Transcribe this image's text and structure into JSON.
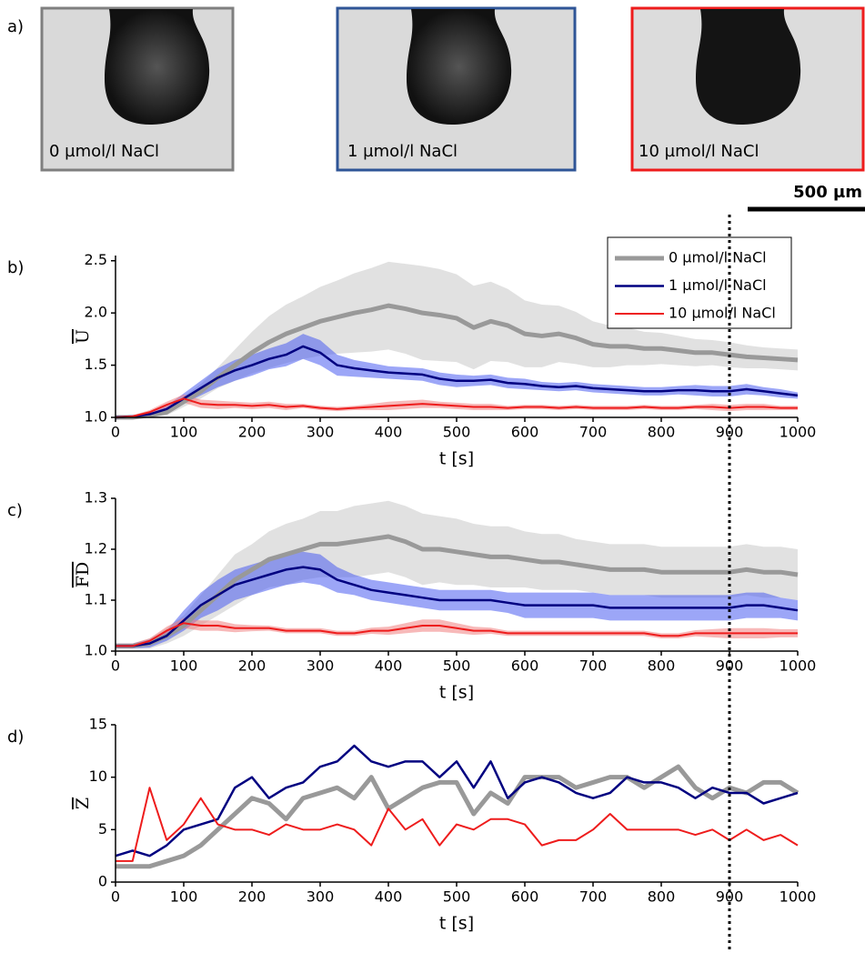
{
  "images": {
    "panel": "a)",
    "captions": [
      "0 µmol/l NaCl",
      "1 µmol/l NaCl",
      "10 µmol/l NaCl"
    ],
    "border_colors": [
      "#7f7f7f",
      "#2f5597",
      "#ee1c1c"
    ],
    "scale_bar": "500 µm"
  },
  "reference_line": {
    "x": 900
  },
  "chart_data": [
    {
      "type": "line",
      "panel": "b)",
      "ylabel": "U",
      "xlabel": "t [s]",
      "x": [
        0,
        25,
        50,
        75,
        100,
        125,
        150,
        175,
        200,
        225,
        250,
        275,
        300,
        325,
        350,
        375,
        400,
        425,
        450,
        475,
        500,
        525,
        550,
        575,
        600,
        625,
        650,
        675,
        700,
        725,
        750,
        775,
        800,
        825,
        850,
        875,
        900,
        925,
        950,
        975,
        1000
      ],
      "xlim": [
        0,
        1000
      ],
      "xticks": [
        0,
        100,
        200,
        300,
        400,
        500,
        600,
        700,
        800,
        900,
        1000
      ],
      "ylim": [
        1,
        2.55
      ],
      "yticks": [
        {
          "value": 1,
          "label": "1.0"
        },
        1.5,
        {
          "value": 2,
          "label": "2.0"
        },
        2.5
      ],
      "legend": "upper right",
      "series": [
        {
          "name": "0 µmol/l NaCl",
          "color": "#999999",
          "band_color": "#c8c8c8",
          "values": [
            1.0,
            1.0,
            1.02,
            1.05,
            1.15,
            1.25,
            1.38,
            1.5,
            1.62,
            1.72,
            1.8,
            1.86,
            1.92,
            1.96,
            2.0,
            2.03,
            2.07,
            2.04,
            2.0,
            1.98,
            1.95,
            1.86,
            1.92,
            1.88,
            1.8,
            1.78,
            1.8,
            1.76,
            1.7,
            1.68,
            1.68,
            1.66,
            1.66,
            1.64,
            1.62,
            1.62,
            1.6,
            1.58,
            1.57,
            1.56,
            1.55
          ],
          "error": [
            0.01,
            0.01,
            0.02,
            0.03,
            0.05,
            0.07,
            0.1,
            0.15,
            0.2,
            0.25,
            0.28,
            0.3,
            0.33,
            0.35,
            0.38,
            0.4,
            0.42,
            0.43,
            0.45,
            0.44,
            0.42,
            0.4,
            0.38,
            0.35,
            0.32,
            0.3,
            0.27,
            0.25,
            0.22,
            0.2,
            0.18,
            0.16,
            0.15,
            0.14,
            0.13,
            0.12,
            0.12,
            0.11,
            0.1,
            0.1,
            0.1
          ]
        },
        {
          "name": "1 µmol/l NaCl",
          "color": "#000080",
          "band_color": "#4a5cf0",
          "values": [
            1.0,
            1.01,
            1.03,
            1.08,
            1.18,
            1.28,
            1.38,
            1.45,
            1.5,
            1.56,
            1.6,
            1.68,
            1.62,
            1.5,
            1.47,
            1.45,
            1.43,
            1.42,
            1.41,
            1.37,
            1.35,
            1.35,
            1.36,
            1.33,
            1.32,
            1.3,
            1.29,
            1.3,
            1.28,
            1.27,
            1.26,
            1.25,
            1.25,
            1.26,
            1.26,
            1.25,
            1.25,
            1.27,
            1.25,
            1.23,
            1.21
          ],
          "error": [
            0.01,
            0.01,
            0.02,
            0.03,
            0.05,
            0.07,
            0.09,
            0.1,
            0.1,
            0.1,
            0.11,
            0.12,
            0.12,
            0.1,
            0.08,
            0.07,
            0.06,
            0.06,
            0.06,
            0.06,
            0.06,
            0.05,
            0.05,
            0.05,
            0.05,
            0.04,
            0.04,
            0.04,
            0.04,
            0.04,
            0.04,
            0.04,
            0.04,
            0.04,
            0.05,
            0.05,
            0.05,
            0.05,
            0.04,
            0.04,
            0.03
          ]
        },
        {
          "name": "10 µmol/l NaCl",
          "color": "#ee1c1c",
          "band_color": "#f08080",
          "values": [
            1.0,
            1.01,
            1.05,
            1.12,
            1.18,
            1.13,
            1.12,
            1.12,
            1.11,
            1.12,
            1.1,
            1.11,
            1.09,
            1.08,
            1.09,
            1.1,
            1.11,
            1.12,
            1.13,
            1.12,
            1.11,
            1.1,
            1.1,
            1.09,
            1.1,
            1.1,
            1.09,
            1.1,
            1.09,
            1.09,
            1.09,
            1.1,
            1.09,
            1.09,
            1.1,
            1.1,
            1.09,
            1.1,
            1.1,
            1.09,
            1.09
          ],
          "error": [
            0.01,
            0.01,
            0.02,
            0.03,
            0.04,
            0.04,
            0.04,
            0.03,
            0.03,
            0.03,
            0.03,
            0.02,
            0.02,
            0.02,
            0.02,
            0.03,
            0.04,
            0.04,
            0.04,
            0.03,
            0.03,
            0.03,
            0.03,
            0.02,
            0.02,
            0.02,
            0.02,
            0.02,
            0.02,
            0.02,
            0.02,
            0.02,
            0.02,
            0.02,
            0.02,
            0.03,
            0.03,
            0.03,
            0.03,
            0.02,
            0.02
          ]
        }
      ]
    },
    {
      "type": "line",
      "panel": "c)",
      "ylabel": "FD",
      "xlabel": "t [s]",
      "x": [
        0,
        25,
        50,
        75,
        100,
        125,
        150,
        175,
        200,
        225,
        250,
        275,
        300,
        325,
        350,
        375,
        400,
        425,
        450,
        475,
        500,
        525,
        550,
        575,
        600,
        625,
        650,
        675,
        700,
        725,
        750,
        775,
        800,
        825,
        850,
        875,
        900,
        925,
        950,
        975,
        1000
      ],
      "xlim": [
        0,
        1000
      ],
      "xticks": [
        0,
        100,
        200,
        300,
        400,
        500,
        600,
        700,
        800,
        900,
        1000
      ],
      "ylim": [
        1,
        1.3
      ],
      "yticks": [
        {
          "value": 1,
          "label": "1.0"
        },
        1.1,
        1.2,
        1.3
      ],
      "series": [
        {
          "name": "0 µmol/l NaCl",
          "color": "#999999",
          "band_color": "#c8c8c8",
          "values": [
            1.01,
            1.01,
            1.015,
            1.03,
            1.05,
            1.08,
            1.11,
            1.14,
            1.16,
            1.18,
            1.19,
            1.2,
            1.21,
            1.21,
            1.215,
            1.22,
            1.225,
            1.215,
            1.2,
            1.2,
            1.195,
            1.19,
            1.185,
            1.185,
            1.18,
            1.175,
            1.175,
            1.17,
            1.165,
            1.16,
            1.16,
            1.16,
            1.155,
            1.155,
            1.155,
            1.155,
            1.155,
            1.16,
            1.155,
            1.155,
            1.15
          ],
          "error": [
            0.005,
            0.005,
            0.01,
            0.015,
            0.02,
            0.03,
            0.04,
            0.05,
            0.05,
            0.055,
            0.06,
            0.06,
            0.065,
            0.065,
            0.07,
            0.07,
            0.07,
            0.07,
            0.07,
            0.065,
            0.065,
            0.06,
            0.06,
            0.06,
            0.055,
            0.055,
            0.055,
            0.05,
            0.05,
            0.05,
            0.05,
            0.05,
            0.05,
            0.05,
            0.05,
            0.05,
            0.05,
            0.05,
            0.05,
            0.05,
            0.05
          ]
        },
        {
          "name": "1 µmol/l NaCl",
          "color": "#000080",
          "band_color": "#4a5cf0",
          "values": [
            1.01,
            1.01,
            1.015,
            1.03,
            1.06,
            1.09,
            1.11,
            1.13,
            1.14,
            1.15,
            1.16,
            1.165,
            1.16,
            1.14,
            1.13,
            1.12,
            1.115,
            1.11,
            1.105,
            1.1,
            1.1,
            1.1,
            1.1,
            1.095,
            1.09,
            1.09,
            1.09,
            1.09,
            1.09,
            1.085,
            1.085,
            1.085,
            1.085,
            1.085,
            1.085,
            1.085,
            1.085,
            1.09,
            1.09,
            1.085,
            1.08
          ],
          "error": [
            0.005,
            0.005,
            0.008,
            0.01,
            0.02,
            0.025,
            0.03,
            0.03,
            0.03,
            0.03,
            0.03,
            0.03,
            0.03,
            0.025,
            0.02,
            0.02,
            0.02,
            0.02,
            0.02,
            0.02,
            0.02,
            0.02,
            0.02,
            0.02,
            0.025,
            0.025,
            0.025,
            0.025,
            0.025,
            0.025,
            0.025,
            0.025,
            0.025,
            0.025,
            0.025,
            0.025,
            0.025,
            0.025,
            0.025,
            0.02,
            0.02
          ]
        },
        {
          "name": "10 µmol/l NaCl",
          "color": "#ee1c1c",
          "band_color": "#f08080",
          "values": [
            1.01,
            1.01,
            1.02,
            1.04,
            1.055,
            1.05,
            1.05,
            1.045,
            1.045,
            1.045,
            1.04,
            1.04,
            1.04,
            1.035,
            1.035,
            1.04,
            1.04,
            1.045,
            1.05,
            1.05,
            1.045,
            1.04,
            1.04,
            1.035,
            1.035,
            1.035,
            1.035,
            1.035,
            1.035,
            1.035,
            1.035,
            1.035,
            1.03,
            1.03,
            1.035,
            1.035,
            1.035,
            1.035,
            1.035,
            1.035,
            1.035
          ],
          "error": [
            0.005,
            0.005,
            0.005,
            0.008,
            0.01,
            0.01,
            0.01,
            0.008,
            0.006,
            0.005,
            0.005,
            0.005,
            0.005,
            0.005,
            0.005,
            0.006,
            0.008,
            0.01,
            0.012,
            0.012,
            0.01,
            0.008,
            0.006,
            0.005,
            0.005,
            0.005,
            0.005,
            0.005,
            0.005,
            0.005,
            0.005,
            0.005,
            0.005,
            0.005,
            0.006,
            0.008,
            0.01,
            0.01,
            0.01,
            0.008,
            0.008
          ]
        }
      ]
    },
    {
      "type": "line",
      "panel": "d)",
      "ylabel": "Z",
      "xlabel": "t [s]",
      "x": [
        0,
        25,
        50,
        75,
        100,
        125,
        150,
        175,
        200,
        225,
        250,
        275,
        300,
        325,
        350,
        375,
        400,
        425,
        450,
        475,
        500,
        525,
        550,
        575,
        600,
        625,
        650,
        675,
        700,
        725,
        750,
        775,
        800,
        825,
        850,
        875,
        900,
        925,
        950,
        975,
        1000
      ],
      "xlim": [
        0,
        1000
      ],
      "xticks": [
        0,
        100,
        200,
        300,
        400,
        500,
        600,
        700,
        800,
        900,
        1000
      ],
      "ylim": [
        0,
        15
      ],
      "yticks": [
        0,
        5,
        10,
        15
      ],
      "series": [
        {
          "name": "0 µmol/l NaCl",
          "color": "#999999",
          "values": [
            1.5,
            1.5,
            1.5,
            2,
            2.5,
            3.5,
            5,
            6.5,
            8,
            7.5,
            6,
            8,
            8.5,
            9,
            8,
            10,
            7,
            8,
            9,
            9.5,
            9.5,
            6.5,
            8.5,
            7.5,
            10,
            10,
            10,
            9,
            9.5,
            10,
            10,
            9,
            10,
            11,
            9,
            8,
            9,
            8.5,
            9.5,
            9.5,
            8.5
          ]
        },
        {
          "name": "1 µmol/l NaCl",
          "color": "#000080",
          "values": [
            2.5,
            3,
            2.5,
            3.5,
            5,
            5.5,
            6,
            9,
            10,
            8,
            9,
            9.5,
            11,
            11.5,
            13,
            11.5,
            11,
            11.5,
            11.5,
            10,
            11.5,
            9,
            11.5,
            8,
            9.5,
            10,
            9.5,
            8.5,
            8,
            8.5,
            10,
            9.5,
            9.5,
            9,
            8,
            9,
            8.5,
            8.5,
            7.5,
            8,
            8.5
          ]
        },
        {
          "name": "10 µmol/l NaCl",
          "color": "#ee1c1c",
          "values": [
            2,
            2,
            9,
            4,
            5.5,
            8,
            5.5,
            5,
            5,
            4.5,
            5.5,
            5,
            5,
            5.5,
            5,
            3.5,
            7,
            5,
            6,
            3.5,
            5.5,
            5,
            6,
            6,
            5.5,
            3.5,
            4,
            4,
            5,
            6.5,
            5,
            5,
            5,
            5,
            4.5,
            5,
            4,
            5,
            4,
            4.5,
            3.5
          ]
        }
      ]
    }
  ]
}
